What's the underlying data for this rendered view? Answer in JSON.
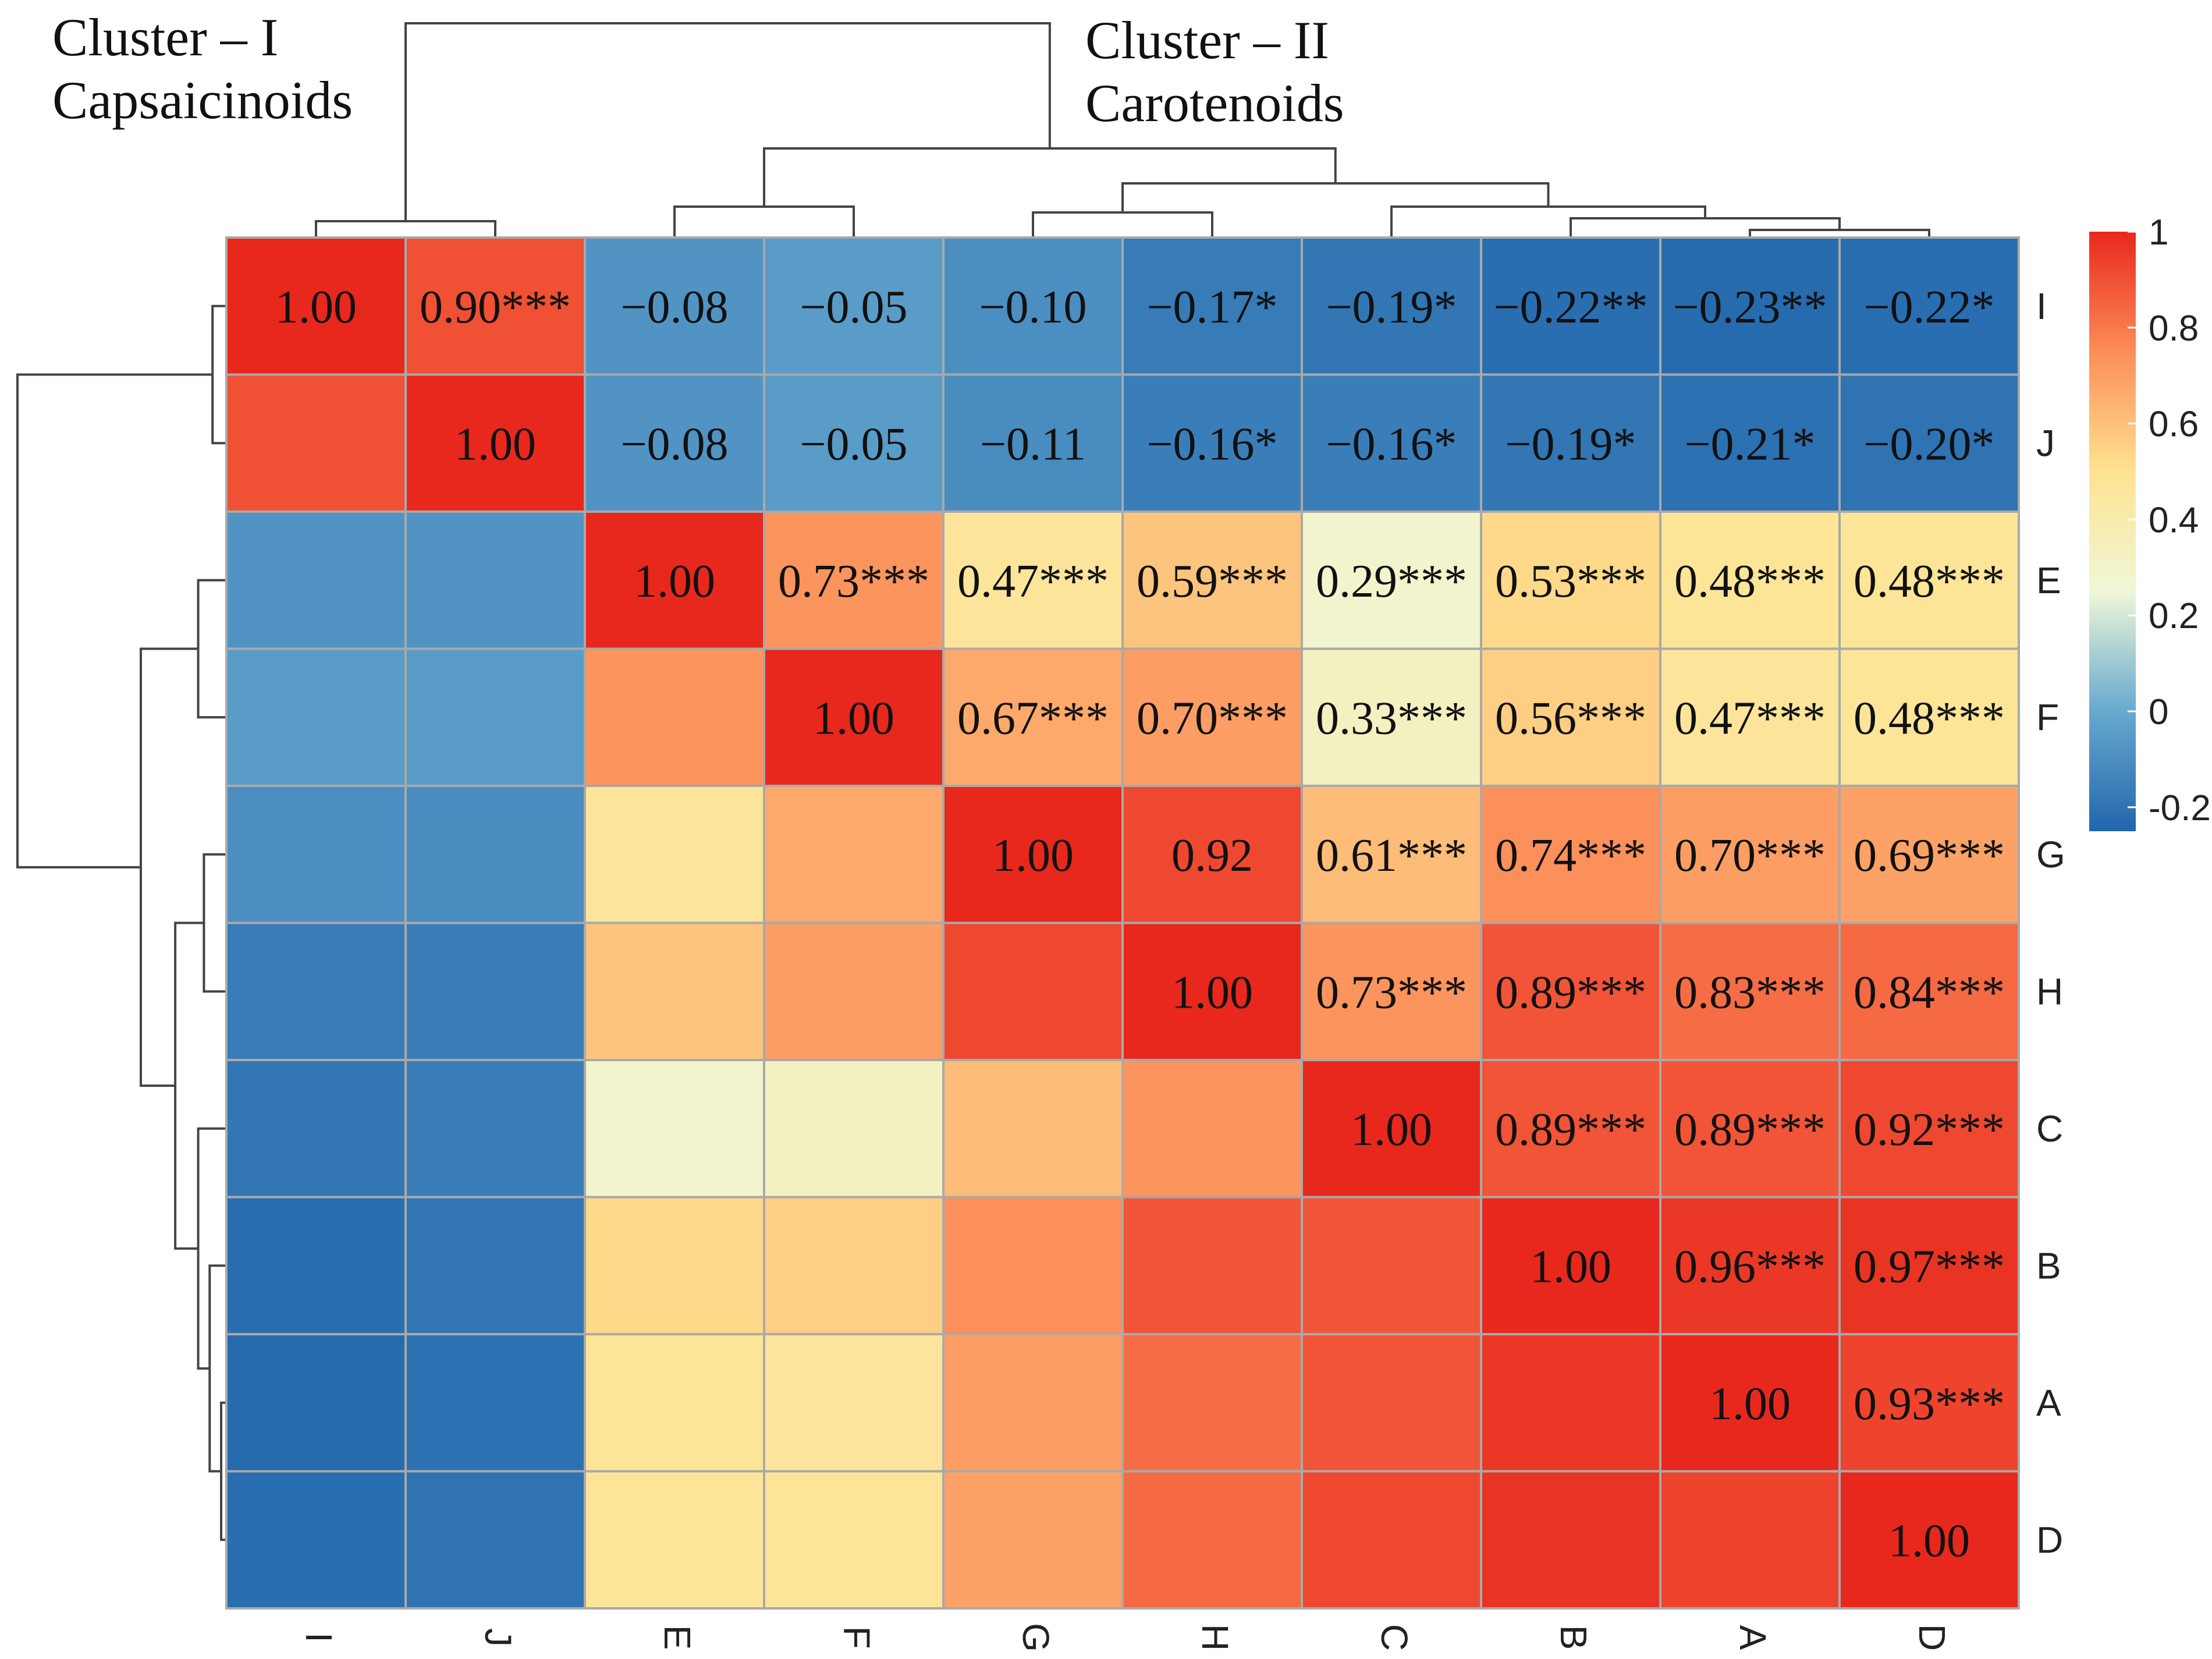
{
  "chart_data": {
    "type": "heatmap",
    "title": "",
    "annotations": [
      {
        "lines": [
          "Cluster – I",
          "Capsaicinoids"
        ]
      },
      {
        "lines": [
          "Cluster – II",
          "Carotenoids"
        ]
      }
    ],
    "columns": [
      "I",
      "J",
      "E",
      "F",
      "G",
      "H",
      "C",
      "B",
      "A",
      "D"
    ],
    "rows": [
      "I",
      "J",
      "E",
      "F",
      "G",
      "H",
      "C",
      "B",
      "A",
      "D"
    ],
    "values": [
      [
        1.0,
        0.9,
        -0.08,
        -0.05,
        -0.1,
        -0.17,
        -0.19,
        -0.22,
        -0.23,
        -0.22
      ],
      [
        0.9,
        1.0,
        -0.08,
        -0.05,
        -0.11,
        -0.16,
        -0.16,
        -0.19,
        -0.21,
        -0.2
      ],
      [
        -0.08,
        -0.08,
        1.0,
        0.73,
        0.47,
        0.59,
        0.29,
        0.53,
        0.48,
        0.48
      ],
      [
        -0.05,
        -0.05,
        0.73,
        1.0,
        0.67,
        0.7,
        0.33,
        0.56,
        0.47,
        0.48
      ],
      [
        -0.1,
        -0.11,
        0.47,
        0.67,
        1.0,
        0.92,
        0.61,
        0.74,
        0.7,
        0.69
      ],
      [
        -0.17,
        -0.16,
        0.59,
        0.7,
        0.92,
        1.0,
        0.73,
        0.89,
        0.83,
        0.84
      ],
      [
        -0.19,
        -0.16,
        0.29,
        0.33,
        0.61,
        0.73,
        1.0,
        0.89,
        0.89,
        0.92
      ],
      [
        -0.22,
        -0.19,
        0.53,
        0.56,
        0.74,
        0.89,
        0.89,
        1.0,
        0.96,
        0.97
      ],
      [
        -0.23,
        -0.21,
        0.48,
        0.47,
        0.7,
        0.83,
        0.89,
        0.96,
        1.0,
        0.93
      ],
      [
        -0.22,
        -0.2,
        0.48,
        0.48,
        0.69,
        0.84,
        0.92,
        0.97,
        0.93,
        1.0
      ]
    ],
    "labels": [
      [
        "1.00",
        "0.90***",
        "−0.08",
        "−0.05",
        "−0.10",
        "−0.17*",
        "−0.19*",
        "−0.22**",
        "−0.23**",
        "−0.22*"
      ],
      [
        "",
        "1.00",
        "−0.08",
        "−0.05",
        "−0.11",
        "−0.16*",
        "−0.16*",
        "−0.19*",
        "−0.21*",
        "−0.20*"
      ],
      [
        "",
        "",
        "1.00",
        "0.73***",
        "0.47***",
        "0.59***",
        "0.29***",
        "0.53***",
        "0.48***",
        "0.48***"
      ],
      [
        "",
        "",
        "",
        "1.00",
        "0.67***",
        "0.70***",
        "0.33***",
        "0.56***",
        "0.47***",
        "0.48***"
      ],
      [
        "",
        "",
        "",
        "",
        "1.00",
        "0.92",
        "0.61***",
        "0.74***",
        "0.70***",
        "0.69***"
      ],
      [
        "",
        "",
        "",
        "",
        "",
        "1.00",
        "0.73***",
        "0.89***",
        "0.83***",
        "0.84***"
      ],
      [
        "",
        "",
        "",
        "",
        "",
        "",
        "1.00",
        "0.89***",
        "0.89***",
        "0.92***"
      ],
      [
        "",
        "",
        "",
        "",
        "",
        "",
        "",
        "1.00",
        "0.96***",
        "0.97***"
      ],
      [
        "",
        "",
        "",
        "",
        "",
        "",
        "",
        "",
        "1.00",
        "0.93***"
      ],
      [
        "",
        "",
        "",
        "",
        "",
        "",
        "",
        "",
        "",
        "1.00"
      ]
    ],
    "color_scale": {
      "min": -0.25,
      "max": 1.0,
      "stops": [
        {
          "value": -0.25,
          "color": "#2166ac"
        },
        {
          "value": 0.0,
          "color": "#67a9cf"
        },
        {
          "value": 0.25,
          "color": "#f0f7d8"
        },
        {
          "value": 0.5,
          "color": "#fee391"
        },
        {
          "value": 0.75,
          "color": "#fc8d59"
        },
        {
          "value": 1.0,
          "color": "#e8281c"
        }
      ],
      "ticks": [
        1,
        0.8,
        0.6,
        0.4,
        0.2,
        0,
        -0.2
      ],
      "tick_labels": [
        "1",
        "0.8",
        "0.6",
        "0.4",
        "0.2",
        "0",
        "-0.2"
      ]
    },
    "legend_position": "right",
    "grid_color": "#a9a9a9",
    "dendrogram_color": "#444444"
  }
}
